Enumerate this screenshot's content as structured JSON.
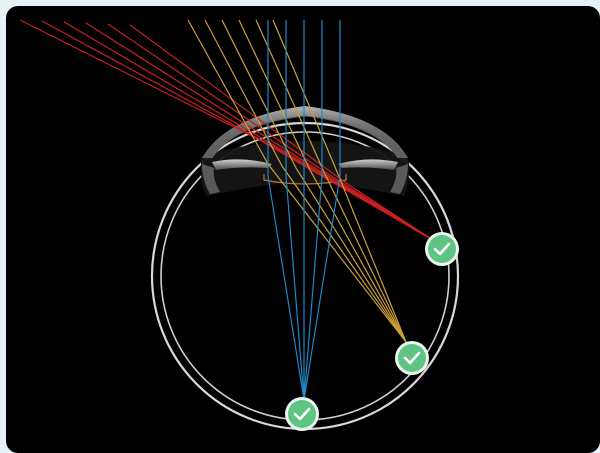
{
  "colors": {
    "page_background": "#e6f2f6",
    "panel_background": "#000000",
    "eye_outline": "#d8d8d8",
    "cornea_tissue": "#9a9a9a",
    "ray_red": "#c8201e",
    "ray_yellow": "#c9a03a",
    "ray_blue": "#1e88c8",
    "badge_fill": "#5fc483",
    "badge_ring": "#e8f6ec",
    "check_mark": "#ffffff"
  },
  "ray_bundles": [
    {
      "name": "red-rays",
      "color_key": "ray_red",
      "count": 6,
      "target": "badge-right"
    },
    {
      "name": "yellow-rays",
      "color_key": "ray_yellow",
      "count": 6,
      "target": "badge-lower-right"
    },
    {
      "name": "blue-rays",
      "color_key": "ray_blue",
      "count": 5,
      "target": "badge-bottom"
    }
  ],
  "focus_indicators": [
    {
      "name": "badge-right",
      "icon": "check-icon",
      "status": "in-focus"
    },
    {
      "name": "badge-lower-right",
      "icon": "check-icon",
      "status": "in-focus"
    },
    {
      "name": "badge-bottom",
      "icon": "check-icon",
      "status": "in-focus"
    }
  ]
}
